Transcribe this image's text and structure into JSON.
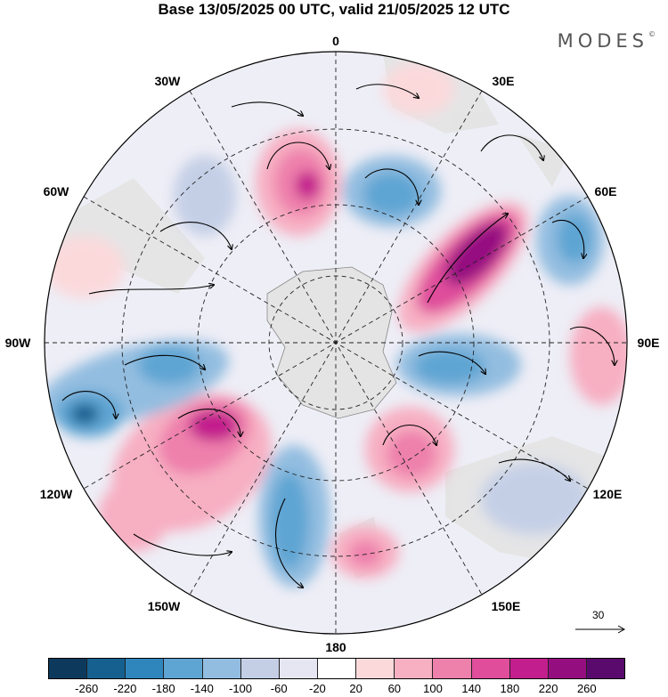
{
  "title": "Base 13/05/2025 00 UTC, valid 21/05/2025 12 UTC",
  "brand": "MODES",
  "brand_mark": "©",
  "map": {
    "projection": "south polar stereographic",
    "longitude_labels": {
      "top": "0",
      "top_right": "30E",
      "right_upper": "60E",
      "right": "90E",
      "right_lower": "120E",
      "bottom_right": "150E",
      "bottom": "180",
      "bottom_left": "150W",
      "left_lower": "120W",
      "left": "90W",
      "left_upper": "60W",
      "top_left": "30W"
    },
    "wind_scale_value": "30"
  },
  "colorbar": {
    "colors": [
      "#0d3a5c",
      "#15608f",
      "#2f86bd",
      "#5ea5d3",
      "#93bde0",
      "#c4cfe6",
      "#e6e6f2",
      "#ffffff",
      "#fbd9db",
      "#f7afc2",
      "#ee80ac",
      "#df4d9b",
      "#c31e8d",
      "#950e80",
      "#5a0a6c"
    ],
    "tick_labels": [
      "-260",
      "-220",
      "-180",
      "-140",
      "-100",
      "-60",
      "-20",
      "20",
      "60",
      "100",
      "140",
      "180",
      "220",
      "260"
    ]
  },
  "colors": {
    "land": "#e0e0e0",
    "neutral": "#ffffff"
  }
}
